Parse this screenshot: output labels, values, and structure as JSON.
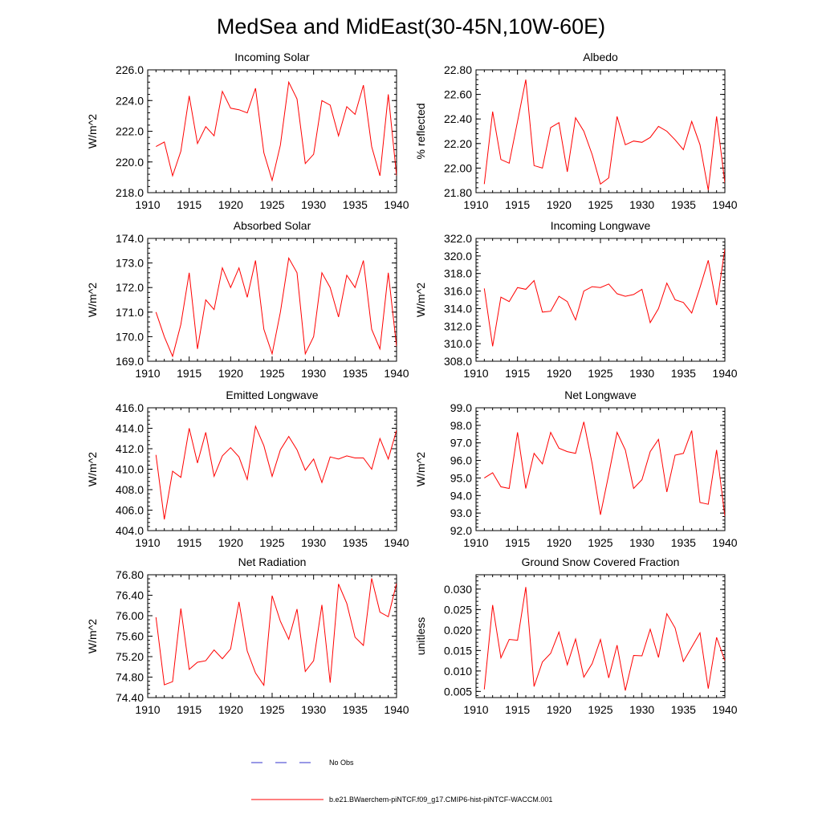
{
  "title": "MedSea and MidEast(30-45N,10W-60E)",
  "colors": {
    "model_line": "#ff0000",
    "obs_line": "#3333cc",
    "axis": "#000000"
  },
  "legend": {
    "obs_label": "No Obs",
    "model_label": "b.e21.BWaerchem-piNTCF.f09_g17.CMIP6-hist-piNTCF-WACCM.001"
  },
  "chart_data": [
    {
      "type": "line",
      "title": "Incoming Solar",
      "xlabel": "",
      "ylabel": "W/m^2",
      "xlim": [
        1910,
        1940
      ],
      "ylim": [
        218.0,
        226.0
      ],
      "xticks": [
        1910,
        1915,
        1920,
        1925,
        1930,
        1935,
        1940
      ],
      "yticks": [
        "218.0",
        "220.0",
        "222.0",
        "224.0",
        "226.0"
      ],
      "yminor_step": 0.4,
      "x": [
        1911,
        1912,
        1913,
        1914,
        1915,
        1916,
        1917,
        1918,
        1919,
        1920,
        1921,
        1922,
        1923,
        1924,
        1925,
        1926,
        1927,
        1928,
        1929,
        1930,
        1931,
        1932,
        1933,
        1934,
        1935,
        1936,
        1937,
        1938,
        1939,
        1940
      ],
      "series": [
        {
          "values": [
            221.0,
            221.3,
            219.1,
            220.7,
            224.3,
            221.2,
            222.3,
            221.7,
            224.6,
            223.5,
            223.4,
            223.2,
            224.8,
            220.6,
            218.8,
            221.1,
            225.2,
            224.1,
            219.9,
            220.5,
            224.0,
            223.7,
            221.7,
            223.6,
            223.1,
            225.0,
            221.0,
            219.1,
            224.4,
            219.1
          ]
        }
      ]
    },
    {
      "type": "line",
      "title": "Albedo",
      "xlabel": "",
      "ylabel": "% reflected",
      "xlim": [
        1910,
        1940
      ],
      "ylim": [
        21.8,
        22.8
      ],
      "xticks": [
        1910,
        1915,
        1920,
        1925,
        1930,
        1935,
        1940
      ],
      "yticks": [
        "21.80",
        "22.00",
        "22.20",
        "22.40",
        "22.60",
        "22.80"
      ],
      "yminor_step": 0.04,
      "x": [
        1911,
        1912,
        1913,
        1914,
        1915,
        1916,
        1917,
        1918,
        1919,
        1920,
        1921,
        1922,
        1923,
        1924,
        1925,
        1926,
        1927,
        1928,
        1929,
        1930,
        1931,
        1932,
        1933,
        1934,
        1935,
        1936,
        1937,
        1938,
        1939,
        1940
      ],
      "series": [
        {
          "values": [
            21.87,
            22.46,
            22.07,
            22.04,
            22.38,
            22.72,
            22.02,
            22.0,
            22.33,
            22.37,
            21.97,
            22.41,
            22.3,
            22.11,
            21.87,
            21.92,
            22.42,
            22.19,
            22.22,
            22.21,
            22.25,
            22.34,
            22.3,
            22.23,
            22.15,
            22.38,
            22.19,
            21.82,
            22.42,
            21.88
          ]
        }
      ]
    },
    {
      "type": "line",
      "title": "Absorbed Solar",
      "xlabel": "",
      "ylabel": "W/m^2",
      "xlim": [
        1910,
        1940
      ],
      "ylim": [
        169.0,
        174.0
      ],
      "xticks": [
        1910,
        1915,
        1920,
        1925,
        1930,
        1935,
        1940
      ],
      "yticks": [
        "169.0",
        "170.0",
        "171.0",
        "172.0",
        "173.0",
        "174.0"
      ],
      "yminor_step": 0.2,
      "x": [
        1911,
        1912,
        1913,
        1914,
        1915,
        1916,
        1917,
        1918,
        1919,
        1920,
        1921,
        1922,
        1923,
        1924,
        1925,
        1926,
        1927,
        1928,
        1929,
        1930,
        1931,
        1932,
        1933,
        1934,
        1935,
        1936,
        1937,
        1938,
        1939,
        1940
      ],
      "series": [
        {
          "values": [
            171.0,
            170.0,
            169.2,
            170.5,
            172.6,
            169.5,
            171.5,
            171.1,
            172.8,
            172.0,
            172.8,
            171.6,
            173.1,
            170.3,
            169.3,
            171.0,
            173.2,
            172.6,
            169.3,
            170.0,
            172.6,
            172.0,
            170.8,
            172.5,
            172.0,
            173.1,
            170.3,
            169.5,
            172.6,
            169.6
          ]
        }
      ]
    },
    {
      "type": "line",
      "title": "Incoming Longwave",
      "xlabel": "",
      "ylabel": "W/m^2",
      "xlim": [
        1910,
        1940
      ],
      "ylim": [
        308.0,
        322.0
      ],
      "xticks": [
        1910,
        1915,
        1920,
        1925,
        1930,
        1935,
        1940
      ],
      "yticks": [
        "308.0",
        "310.0",
        "312.0",
        "314.0",
        "316.0",
        "318.0",
        "320.0",
        "322.0"
      ],
      "yminor_step": 0.4,
      "x": [
        1911,
        1912,
        1913,
        1914,
        1915,
        1916,
        1917,
        1918,
        1919,
        1920,
        1921,
        1922,
        1923,
        1924,
        1925,
        1926,
        1927,
        1928,
        1929,
        1930,
        1931,
        1932,
        1933,
        1934,
        1935,
        1936,
        1937,
        1938,
        1939,
        1940
      ],
      "series": [
        {
          "values": [
            316.3,
            309.7,
            315.3,
            314.8,
            316.4,
            316.2,
            317.2,
            313.6,
            313.7,
            315.4,
            314.8,
            312.7,
            316.0,
            316.5,
            316.4,
            316.8,
            315.7,
            315.4,
            315.6,
            316.2,
            312.4,
            314.0,
            316.9,
            315.0,
            314.7,
            313.5,
            316.4,
            319.5,
            314.4,
            320.8
          ]
        }
      ]
    },
    {
      "type": "line",
      "title": "Emitted Longwave",
      "xlabel": "",
      "ylabel": "W/m^2",
      "xlim": [
        1910,
        1940
      ],
      "ylim": [
        404.0,
        416.0
      ],
      "xticks": [
        1910,
        1915,
        1920,
        1925,
        1930,
        1935,
        1940
      ],
      "yticks": [
        "404.0",
        "406.0",
        "408.0",
        "410.0",
        "412.0",
        "414.0",
        "416.0"
      ],
      "yminor_step": 0.4,
      "x": [
        1911,
        1912,
        1913,
        1914,
        1915,
        1916,
        1917,
        1918,
        1919,
        1920,
        1921,
        1922,
        1923,
        1924,
        1925,
        1926,
        1927,
        1928,
        1929,
        1930,
        1931,
        1932,
        1933,
        1934,
        1935,
        1936,
        1937,
        1938,
        1939,
        1940
      ],
      "series": [
        {
          "values": [
            411.4,
            405.1,
            409.8,
            409.2,
            414.0,
            410.6,
            413.6,
            409.3,
            411.3,
            412.1,
            411.2,
            409.0,
            414.2,
            412.3,
            409.3,
            411.9,
            413.2,
            411.9,
            409.9,
            411.0,
            408.7,
            411.2,
            411.0,
            411.3,
            411.1,
            411.1,
            410.0,
            413.0,
            411.0,
            413.8
          ]
        }
      ]
    },
    {
      "type": "line",
      "title": "Net Longwave",
      "xlabel": "",
      "ylabel": "W/m^2",
      "xlim": [
        1910,
        1940
      ],
      "ylim": [
        92.0,
        99.0
      ],
      "xticks": [
        1910,
        1915,
        1920,
        1925,
        1930,
        1935,
        1940
      ],
      "yticks": [
        "92.0",
        "93.0",
        "94.0",
        "95.0",
        "96.0",
        "97.0",
        "98.0",
        "99.0"
      ],
      "yminor_step": 0.2,
      "x": [
        1911,
        1912,
        1913,
        1914,
        1915,
        1916,
        1917,
        1918,
        1919,
        1920,
        1921,
        1922,
        1923,
        1924,
        1925,
        1926,
        1927,
        1928,
        1929,
        1930,
        1931,
        1932,
        1933,
        1934,
        1935,
        1936,
        1937,
        1938,
        1939,
        1940
      ],
      "series": [
        {
          "values": [
            95.0,
            95.3,
            94.5,
            94.4,
            97.6,
            94.4,
            96.4,
            95.8,
            97.6,
            96.7,
            96.5,
            96.4,
            98.2,
            95.8,
            92.9,
            95.2,
            97.6,
            96.6,
            94.4,
            94.9,
            96.5,
            97.2,
            94.2,
            96.3,
            96.4,
            97.7,
            93.6,
            93.5,
            96.6,
            92.8
          ]
        }
      ]
    },
    {
      "type": "line",
      "title": "Net Radiation",
      "xlabel": "",
      "ylabel": "W/m^2",
      "xlim": [
        1910,
        1940
      ],
      "ylim": [
        74.4,
        76.8
      ],
      "xticks": [
        1910,
        1915,
        1920,
        1925,
        1930,
        1935,
        1940
      ],
      "yticks": [
        "74.40",
        "74.80",
        "75.20",
        "75.60",
        "76.00",
        "76.40",
        "76.80"
      ],
      "yminor_step": 0.08,
      "x": [
        1911,
        1912,
        1913,
        1914,
        1915,
        1916,
        1917,
        1918,
        1919,
        1920,
        1921,
        1922,
        1923,
        1924,
        1925,
        1926,
        1927,
        1928,
        1929,
        1930,
        1931,
        1932,
        1933,
        1934,
        1935,
        1936,
        1937,
        1938,
        1939,
        1940
      ],
      "series": [
        {
          "values": [
            75.97,
            74.65,
            74.71,
            76.14,
            74.95,
            75.09,
            75.12,
            75.33,
            75.16,
            75.35,
            76.27,
            75.31,
            74.88,
            74.64,
            76.39,
            75.89,
            75.54,
            76.13,
            74.91,
            75.12,
            76.21,
            74.69,
            76.62,
            76.24,
            75.58,
            75.42,
            76.73,
            76.07,
            75.98,
            76.63
          ]
        }
      ]
    },
    {
      "type": "line",
      "title": "Ground Snow Covered Fraction",
      "xlabel": "",
      "ylabel": "unitless",
      "xlim": [
        1910,
        1940
      ],
      "ylim": [
        0.0035,
        0.0335
      ],
      "xticks": [
        1910,
        1915,
        1920,
        1925,
        1930,
        1935,
        1940
      ],
      "yticks": [
        "0.005",
        "0.010",
        "0.015",
        "0.020",
        "0.025",
        "0.030"
      ],
      "yminor_step": 0.001,
      "x": [
        1911,
        1912,
        1913,
        1914,
        1915,
        1916,
        1917,
        1918,
        1919,
        1920,
        1921,
        1922,
        1923,
        1924,
        1925,
        1926,
        1927,
        1928,
        1929,
        1930,
        1931,
        1932,
        1933,
        1934,
        1935,
        1936,
        1937,
        1938,
        1939,
        1940
      ],
      "series": [
        {
          "values": [
            0.0055,
            0.0261,
            0.0132,
            0.0177,
            0.0175,
            0.0305,
            0.0062,
            0.0122,
            0.0143,
            0.0195,
            0.0115,
            0.0178,
            0.0085,
            0.0118,
            0.0177,
            0.0083,
            0.0163,
            0.0052,
            0.0138,
            0.0137,
            0.0202,
            0.0133,
            0.024,
            0.0205,
            0.0123,
            0.0158,
            0.0193,
            0.0057,
            0.0182,
            0.0125
          ]
        }
      ]
    }
  ]
}
